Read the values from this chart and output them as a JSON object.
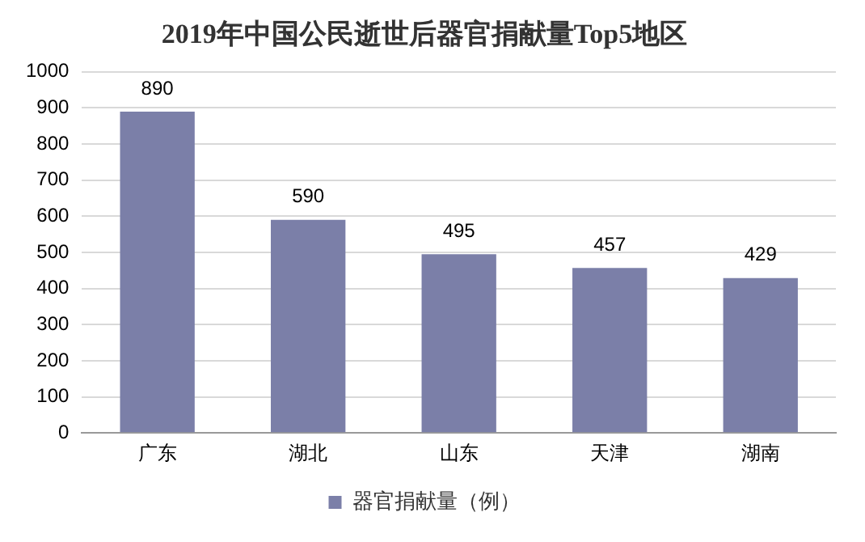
{
  "chart_data": {
    "type": "bar",
    "title": "2019年中国公民逝世后器官捐献量Top5地区",
    "categories": [
      "广东",
      "湖北",
      "山东",
      "天津",
      "湖南"
    ],
    "series": [
      {
        "name": "器官捐献量（例）",
        "color": "#7b7fa8",
        "values": [
          890,
          590,
          495,
          457,
          429
        ]
      }
    ],
    "ylim": [
      0,
      1000
    ],
    "yticks": [
      0,
      100,
      200,
      300,
      400,
      500,
      600,
      700,
      800,
      900,
      1000
    ],
    "grid": "y",
    "legend": "bottom",
    "data_labels": true
  }
}
